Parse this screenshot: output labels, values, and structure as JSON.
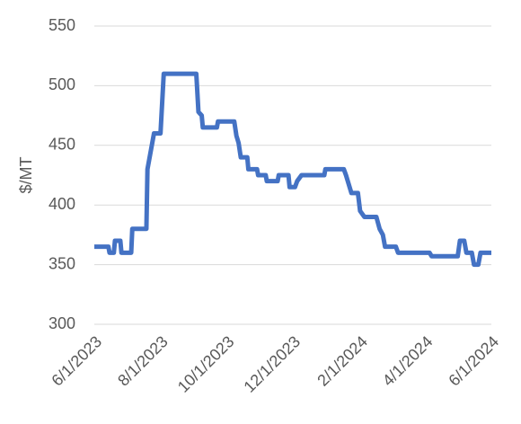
{
  "chart_data": {
    "type": "line",
    "y_label": "$/MT",
    "x": [
      "2023-06-01",
      "2023-06-14",
      "2023-06-15",
      "2023-06-19",
      "2023-06-20",
      "2023-06-25",
      "2023-06-26",
      "2023-07-05",
      "2023-07-06",
      "2023-07-19",
      "2023-07-20",
      "2023-07-26",
      "2023-08-01",
      "2023-08-04",
      "2023-09-03",
      "2023-09-05",
      "2023-09-08",
      "2023-09-09",
      "2023-09-22",
      "2023-09-23",
      "2023-10-08",
      "2023-10-10",
      "2023-10-12",
      "2023-10-14",
      "2023-10-20",
      "2023-10-21",
      "2023-10-29",
      "2023-10-30",
      "2023-11-06",
      "2023-11-07",
      "2023-11-17",
      "2023-11-18",
      "2023-11-27",
      "2023-11-28",
      "2023-12-03",
      "2023-12-05",
      "2023-12-09",
      "2023-12-30",
      "2023-12-31",
      "2024-01-17",
      "2024-01-19",
      "2024-01-24",
      "2024-01-30",
      "2024-02-01",
      "2024-02-05",
      "2024-02-16",
      "2024-02-19",
      "2024-02-22",
      "2024-02-24",
      "2024-03-05",
      "2024-03-07",
      "2024-04-05",
      "2024-04-07",
      "2024-05-01",
      "2024-05-03",
      "2024-05-07",
      "2024-05-09",
      "2024-05-14",
      "2024-05-16",
      "2024-05-20",
      "2024-05-22",
      "2024-06-01"
    ],
    "series": [
      {
        "color": "#4472c4",
        "values": [
          365,
          365,
          360,
          360,
          370,
          370,
          360,
          360,
          380,
          380,
          430,
          460,
          460,
          510,
          510,
          478,
          475,
          465,
          465,
          470,
          470,
          458,
          452,
          440,
          440,
          430,
          430,
          425,
          425,
          420,
          420,
          425,
          425,
          415,
          415,
          420,
          425,
          425,
          430,
          430,
          425,
          410,
          410,
          395,
          390,
          390,
          380,
          375,
          365,
          365,
          360,
          360,
          357,
          357,
          370,
          370,
          360,
          360,
          350,
          350,
          360,
          360
        ]
      }
    ],
    "xlim": [
      "2023-06-01",
      "2024-06-01"
    ],
    "xticks": [
      {
        "value": "2023-06-01",
        "label": "6/1/2023"
      },
      {
        "value": "2023-08-01",
        "label": "8/1/2023"
      },
      {
        "value": "2023-10-01",
        "label": "10/1/2023"
      },
      {
        "value": "2023-12-01",
        "label": "12/1/2023"
      },
      {
        "value": "2024-02-01",
        "label": "2/1/2024"
      },
      {
        "value": "2024-04-01",
        "label": "4/1/2024"
      },
      {
        "value": "2024-06-01",
        "label": "6/1/2024"
      }
    ],
    "ylim": [
      300,
      550
    ],
    "yticks": [
      300,
      350,
      400,
      450,
      500,
      550
    ],
    "grid": true
  }
}
